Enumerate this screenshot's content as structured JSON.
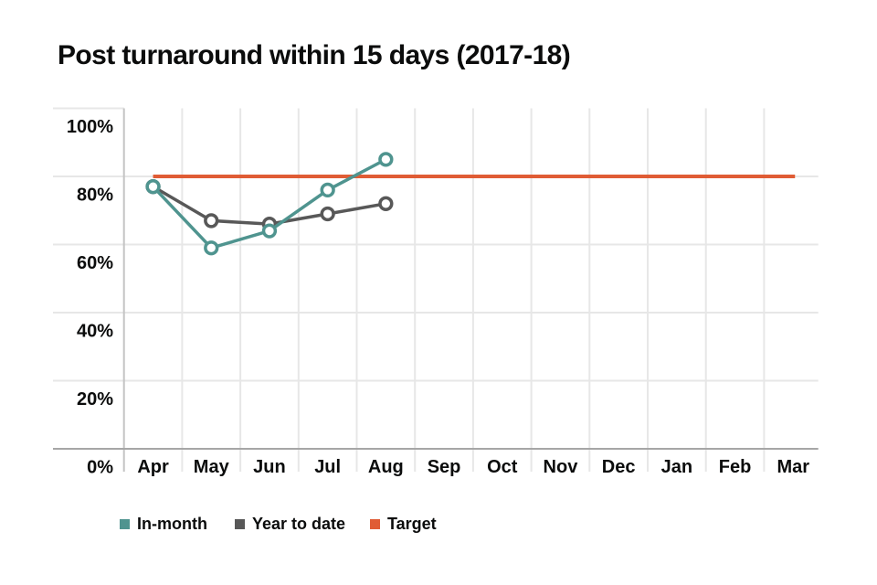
{
  "title": "Post turnaround within 15 days (2017-18)",
  "chart_data": {
    "type": "line",
    "title": "Post turnaround within 15 days (2017-18)",
    "categories": [
      "Apr",
      "May",
      "Jun",
      "Jul",
      "Aug",
      "Sep",
      "Oct",
      "Nov",
      "Dec",
      "Jan",
      "Feb",
      "Mar"
    ],
    "series": [
      {
        "name": "Year to date",
        "color": "#585858",
        "values": [
          77,
          67,
          66,
          69,
          72,
          null,
          null,
          null,
          null,
          null,
          null,
          null
        ]
      },
      {
        "name": "In-month",
        "color": "#4f948f",
        "values": [
          77,
          59,
          64,
          76,
          85,
          null,
          null,
          null,
          null,
          null,
          null,
          null
        ]
      }
    ],
    "target": {
      "name": "Target",
      "value": 80,
      "color": "#e05c35"
    },
    "ylabel_ticks": [
      "0%",
      "20%",
      "40%",
      "60%",
      "80%",
      "100%"
    ],
    "ylim": [
      0,
      100
    ],
    "grid": true,
    "legend_position": "bottom",
    "marker": "open-circle"
  },
  "legend": {
    "items": [
      {
        "label": "In-month",
        "color": "#4f948f"
      },
      {
        "label": "Year to date",
        "color": "#585858"
      },
      {
        "label": "Target",
        "color": "#e05c35"
      }
    ]
  },
  "colors": {
    "text": "#0b0c0c",
    "gridline": "#e7e7e7",
    "axis": "#a6a6a6",
    "left_axis": "#c4c4c4",
    "marker_fill": "#ffffff"
  }
}
